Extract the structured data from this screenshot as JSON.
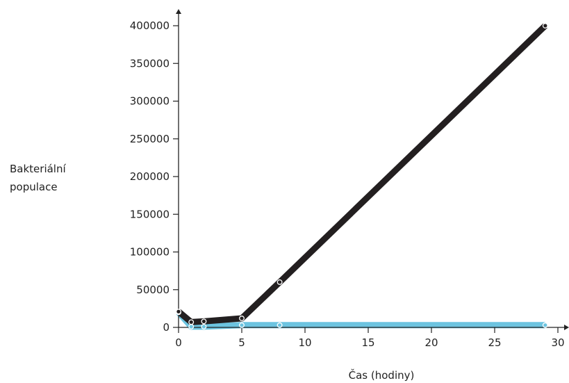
{
  "chart_data": {
    "type": "line",
    "title": "",
    "xlabel": "Čas (hodiny)",
    "ylabel_line1": "Bakteriální",
    "ylabel_line2": "populace",
    "xlim": [
      0,
      30
    ],
    "ylim": [
      0,
      400000
    ],
    "x_ticks": [
      0,
      5,
      10,
      15,
      20,
      25,
      30
    ],
    "y_ticks": [
      0,
      50000,
      100000,
      150000,
      200000,
      250000,
      300000,
      350000,
      400000
    ],
    "grid": false,
    "legend": "none",
    "series": [
      {
        "color": "#6cc4e0",
        "x": [
          0,
          1,
          2,
          5,
          8,
          29
        ],
        "y": [
          20000,
          1000,
          1000,
          3000,
          3000,
          3000
        ]
      },
      {
        "color": "#231f20",
        "x": [
          0,
          1,
          2,
          5,
          8,
          29
        ],
        "y": [
          21000,
          7000,
          8000,
          12000,
          60000,
          400000
        ]
      }
    ]
  }
}
